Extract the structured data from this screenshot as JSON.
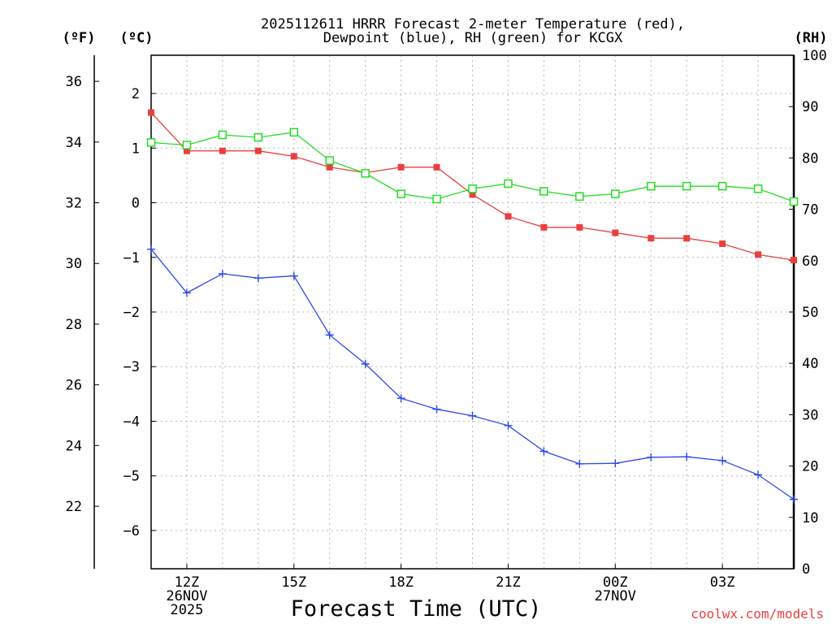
{
  "chart_data": {
    "type": "line",
    "title_lines": [
      "2025112611 HRRR Forecast 2-meter Temperature (red),",
      "Dewpoint (blue), RH (green) for KCGX"
    ],
    "xlabel": "Forecast Time (UTC)",
    "credit": "coolwx.com/models",
    "x_hours": [
      11,
      12,
      13,
      14,
      15,
      16,
      17,
      18,
      19,
      20,
      21,
      22,
      23,
      24,
      25,
      26,
      27,
      28,
      29
    ],
    "x_ticks": [
      {
        "hour": 12,
        "lines": [
          "12Z",
          "26NOV",
          "2025"
        ]
      },
      {
        "hour": 15,
        "lines": [
          "15Z"
        ]
      },
      {
        "hour": 18,
        "lines": [
          "18Z"
        ]
      },
      {
        "hour": 21,
        "lines": [
          "21Z"
        ]
      },
      {
        "hour": 24,
        "lines": [
          "00Z",
          "27NOV"
        ]
      },
      {
        "hour": 27,
        "lines": [
          "03Z"
        ]
      }
    ],
    "xlim": [
      11,
      29
    ],
    "axes": {
      "celsius": {
        "unit_label": "(ºC)",
        "ylim": [
          -6.7,
          2.7
        ],
        "ticks": [
          "2",
          "1",
          "0",
          "−1",
          "−2",
          "−3",
          "−4",
          "−5",
          "−6"
        ],
        "tick_values": [
          2,
          1,
          0,
          -1,
          -2,
          -3,
          -4,
          -5,
          -6
        ]
      },
      "fahrenheit": {
        "unit_label": "(ºF)",
        "ticks": [
          "36",
          "34",
          "32",
          "30",
          "28",
          "26",
          "24",
          "22"
        ],
        "tick_values": [
          36,
          34,
          32,
          30,
          28,
          26,
          24,
          22
        ]
      },
      "rh": {
        "unit_label": "(RH)",
        "ylim": [
          0,
          100
        ],
        "ticks": [
          "100",
          "90",
          "80",
          "70",
          "60",
          "50",
          "40",
          "30",
          "20",
          "10",
          "0"
        ],
        "tick_values": [
          100,
          90,
          80,
          70,
          60,
          50,
          40,
          30,
          20,
          10,
          0
        ]
      }
    },
    "series": [
      {
        "name": "2-meter Temperature",
        "axis": "celsius",
        "color": "#e8403f",
        "marker": "filled-square",
        "values": [
          1.65,
          0.95,
          0.95,
          0.95,
          0.85,
          0.65,
          0.55,
          0.65,
          0.65,
          0.15,
          -0.25,
          -0.45,
          -0.45,
          -0.55,
          -0.65,
          -0.65,
          -0.75,
          -0.95,
          -1.05
        ]
      },
      {
        "name": "Dewpoint",
        "axis": "celsius",
        "color": "#2b4ae8",
        "marker": "plus",
        "values": [
          -0.85,
          -1.65,
          -1.3,
          -1.38,
          -1.34,
          -2.42,
          -2.95,
          -3.58,
          -3.78,
          -3.9,
          -4.08,
          -4.55,
          -4.78,
          -4.77,
          -4.66,
          -4.65,
          -4.72,
          -4.98,
          -5.43
        ]
      },
      {
        "name": "RH",
        "axis": "rh",
        "color": "#22dd22",
        "marker": "open-square",
        "values": [
          83,
          82.5,
          84.5,
          84,
          85,
          79.5,
          77,
          73,
          72,
          74,
          75,
          73.5,
          72.5,
          73,
          74.5,
          74.5,
          74.5,
          74,
          71.5
        ]
      }
    ]
  }
}
